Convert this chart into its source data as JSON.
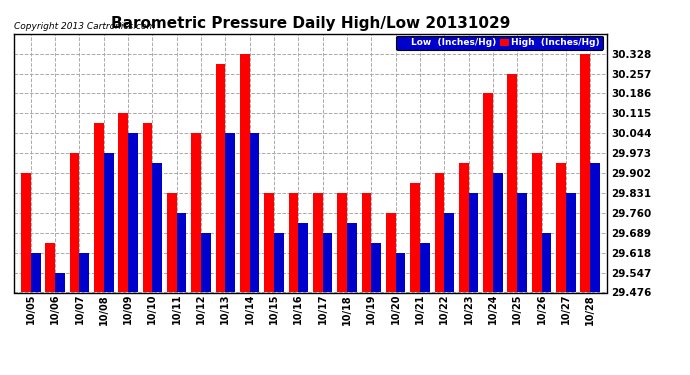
{
  "title": "Barometric Pressure Daily High/Low 20131029",
  "copyright": "Copyright 2013 Cartronics.com",
  "legend_low": "Low  (Inches/Hg)",
  "legend_high": "High  (Inches/Hg)",
  "dates": [
    "10/05",
    "10/06",
    "10/07",
    "10/08",
    "10/09",
    "10/10",
    "10/11",
    "10/12",
    "10/13",
    "10/14",
    "10/15",
    "10/16",
    "10/17",
    "10/18",
    "10/19",
    "10/20",
    "10/21",
    "10/22",
    "10/23",
    "10/24",
    "10/25",
    "10/26",
    "10/27",
    "10/28"
  ],
  "high_values": [
    29.902,
    29.653,
    29.973,
    30.079,
    30.115,
    30.079,
    29.831,
    30.044,
    30.292,
    30.328,
    29.831,
    29.831,
    29.831,
    29.831,
    29.831,
    29.76,
    29.867,
    29.902,
    29.938,
    30.186,
    30.257,
    29.973,
    29.938,
    30.328
  ],
  "low_values": [
    29.618,
    29.547,
    29.618,
    29.973,
    30.044,
    29.938,
    29.76,
    29.689,
    30.044,
    30.044,
    29.689,
    29.724,
    29.689,
    29.724,
    29.653,
    29.618,
    29.653,
    29.76,
    29.831,
    29.902,
    29.831,
    29.689,
    29.831,
    29.938
  ],
  "ylim_min": 29.476,
  "ylim_max": 30.399,
  "yticks": [
    29.476,
    29.547,
    29.618,
    29.689,
    29.76,
    29.831,
    29.902,
    29.973,
    30.044,
    30.115,
    30.186,
    30.257,
    30.328
  ],
  "high_color": "#ff0000",
  "low_color": "#0000cc",
  "bg_color": "#ffffff",
  "grid_color": "#aaaaaa",
  "title_fontsize": 11,
  "bar_width": 0.4
}
